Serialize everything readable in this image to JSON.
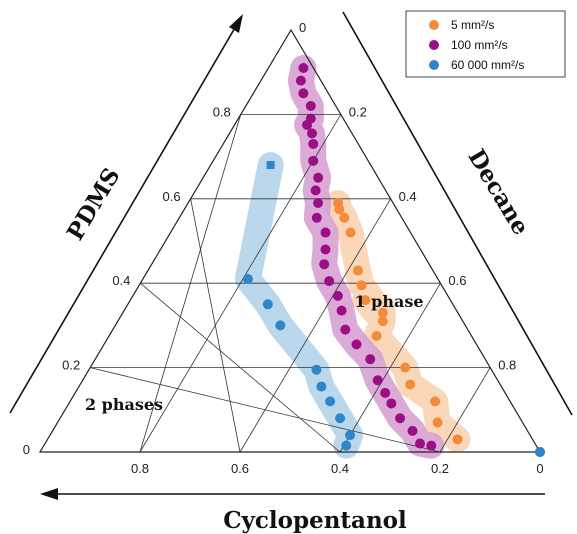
{
  "chart_data": {
    "type": "scatter",
    "subtype": "ternary",
    "axes": {
      "top": "PDMS",
      "right": "Decane",
      "bottom": "Cyclopentanol"
    },
    "ticks": [
      "0",
      "0.2",
      "0.4",
      "0.6",
      "0.8"
    ],
    "grid": true,
    "legend_position": "top-right",
    "series": [
      {
        "name": "5 mm²/s",
        "color": "#f28c3a",
        "band_color": "#fbd3b1",
        "points": [
          {
            "p": 0.59,
            "d": 0.11
          },
          {
            "p": 0.575,
            "d": 0.115
          },
          {
            "p": 0.555,
            "d": 0.115
          },
          {
            "p": 0.52,
            "d": 0.12
          },
          {
            "p": 0.43,
            "d": 0.15
          },
          {
            "p": 0.395,
            "d": 0.16
          },
          {
            "p": 0.33,
            "d": 0.15
          },
          {
            "p": 0.36,
            "d": 0.17
          },
          {
            "p": 0.31,
            "d": 0.16
          },
          {
            "p": 0.275,
            "d": 0.19
          },
          {
            "p": 0.2,
            "d": 0.17
          },
          {
            "p": 0.16,
            "d": 0.18
          },
          {
            "p": 0.12,
            "d": 0.15
          },
          {
            "p": 0.07,
            "d": 0.17
          },
          {
            "p": 0.03,
            "d": 0.15
          }
        ]
      },
      {
        "name": "100 mm²/s",
        "color": "#9b0f86",
        "band_color": "#d7a1d2",
        "points": [
          {
            "p": 0.91,
            "d": 0.02
          },
          {
            "p": 0.88,
            "d": 0.04
          },
          {
            "p": 0.85,
            "d": 0.05
          },
          {
            "p": 0.82,
            "d": 0.05
          },
          {
            "p": 0.79,
            "d": 0.065
          },
          {
            "p": 0.775,
            "d": 0.08
          },
          {
            "p": 0.755,
            "d": 0.08
          },
          {
            "p": 0.73,
            "d": 0.09
          },
          {
            "p": 0.69,
            "d": 0.11
          },
          {
            "p": 0.65,
            "d": 0.12
          },
          {
            "p": 0.62,
            "d": 0.14
          },
          {
            "p": 0.59,
            "d": 0.15
          },
          {
            "p": 0.555,
            "d": 0.17
          },
          {
            "p": 0.52,
            "d": 0.17
          },
          {
            "p": 0.48,
            "d": 0.19
          },
          {
            "p": 0.445,
            "d": 0.21
          },
          {
            "p": 0.405,
            "d": 0.22
          },
          {
            "p": 0.37,
            "d": 0.22
          },
          {
            "p": 0.335,
            "d": 0.23
          },
          {
            "p": 0.29,
            "d": 0.245
          },
          {
            "p": 0.255,
            "d": 0.24
          },
          {
            "p": 0.22,
            "d": 0.23
          },
          {
            "p": 0.17,
            "d": 0.24
          },
          {
            "p": 0.14,
            "d": 0.24
          },
          {
            "p": 0.115,
            "d": 0.24
          },
          {
            "p": 0.08,
            "d": 0.24
          },
          {
            "p": 0.05,
            "d": 0.23
          },
          {
            "p": 0.02,
            "d": 0.23
          },
          {
            "p": 0.015,
            "d": 0.21
          },
          {
            "p": 0,
            "d": 0
          }
        ]
      },
      {
        "name": "60 000 mm²/s",
        "color": "#2e86c8",
        "band_color": "#b3d3ea",
        "points": [
          {
            "p": 0.68,
            "d": 0.2
          },
          {
            "p": 0.41,
            "d": 0.38
          },
          {
            "p": 0.35,
            "d": 0.37
          },
          {
            "p": 0.3,
            "d": 0.37
          },
          {
            "p": 0.195,
            "d": 0.35
          },
          {
            "p": 0.155,
            "d": 0.36
          },
          {
            "p": 0.12,
            "d": 0.36
          },
          {
            "p": 0.08,
            "d": 0.36
          },
          {
            "p": 0.04,
            "d": 0.36
          },
          {
            "p": 0.015,
            "d": 0.38
          },
          {
            "p": 0,
            "d": 0
          }
        ]
      }
    ],
    "annotations": [
      "1 phase",
      "2 phases"
    ]
  }
}
